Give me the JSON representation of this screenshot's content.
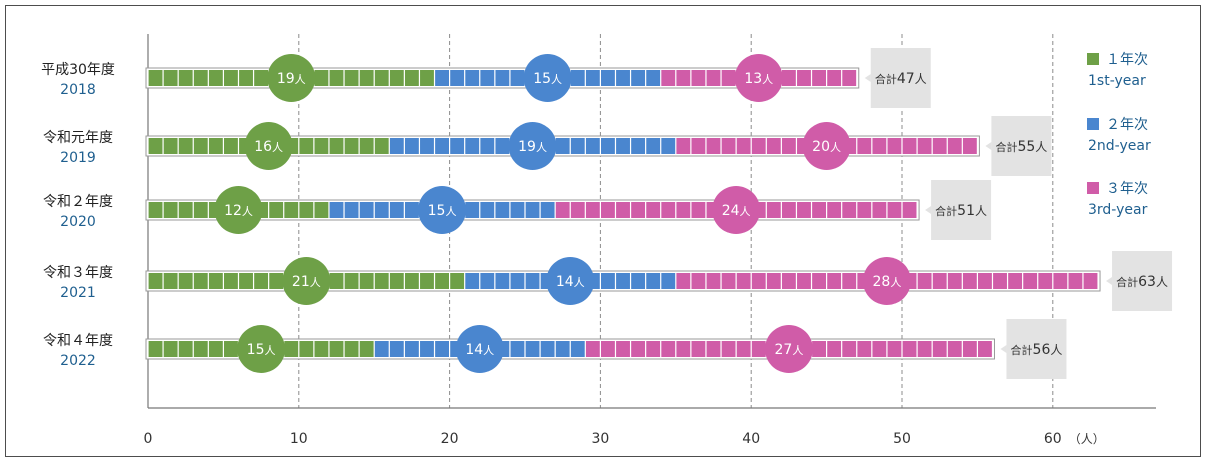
{
  "chart_data": {
    "type": "bar",
    "orientation": "horizontal",
    "stacked": true,
    "unit_label": "（人）",
    "xlim": [
      0,
      66
    ],
    "xticks": [
      0,
      10,
      20,
      30,
      40,
      50,
      60
    ],
    "grid": "vertical dashed lines at 10, 20, 30, 40, 50, 60",
    "legend_position": "right",
    "categories": [
      {
        "label_ja": "平成30年度",
        "label_year": "2018"
      },
      {
        "label_ja": "令和元年度",
        "label_year": "2019"
      },
      {
        "label_ja": "令和２年度",
        "label_year": "2020"
      },
      {
        "label_ja": "令和３年度",
        "label_year": "2021"
      },
      {
        "label_ja": "令和４年度",
        "label_year": "2022"
      }
    ],
    "series": [
      {
        "name_ja": "１年次",
        "name_en": "1st-year",
        "color": "#6ea047",
        "values": [
          19,
          16,
          12,
          21,
          15
        ]
      },
      {
        "name_ja": "２年次",
        "name_en": "2nd-year",
        "color": "#4a86cf",
        "values": [
          15,
          19,
          15,
          14,
          14
        ]
      },
      {
        "name_ja": "３年次",
        "name_en": "3rd-year",
        "color": "#d05ca8",
        "values": [
          13,
          20,
          24,
          28,
          27
        ]
      }
    ],
    "totals_prefix": "合計",
    "totals": [
      47,
      55,
      51,
      63,
      56
    ],
    "value_suffix": "人"
  }
}
